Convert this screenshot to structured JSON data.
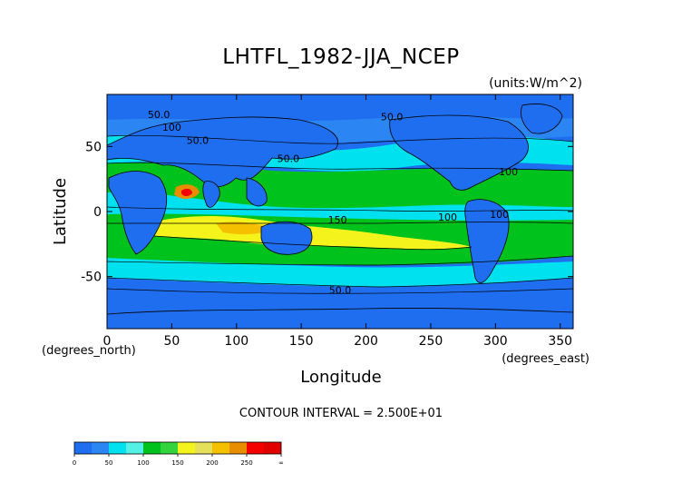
{
  "chart_data": {
    "type": "heatmap",
    "title": "LHTFL_1982-JJA_NCEP",
    "units": "(units:W/m^2)",
    "xlabel": "Longitude",
    "ylabel": "Latitude",
    "x_unit_label": "(degrees_east)",
    "y_unit_label": "(degrees_north)",
    "xlim": [
      0,
      360
    ],
    "ylim": [
      -90,
      90
    ],
    "x_ticks": [
      0,
      50,
      100,
      150,
      200,
      250,
      300,
      350
    ],
    "y_ticks": [
      -50,
      0,
      50
    ],
    "contour_interval_text": "CONTOUR INTERVAL = 2.500E+01",
    "contour_labels": [
      {
        "text": "50.0",
        "lon": 40,
        "lat": 72
      },
      {
        "text": "100",
        "lon": 50,
        "lat": 62
      },
      {
        "text": "50.0",
        "lon": 70,
        "lat": 52
      },
      {
        "text": "50.0",
        "lon": 140,
        "lat": 38
      },
      {
        "text": "50.0",
        "lon": 220,
        "lat": 70
      },
      {
        "text": "100",
        "lon": 310,
        "lat": 28
      },
      {
        "text": "150",
        "lon": 178,
        "lat": -9
      },
      {
        "text": "100",
        "lon": 263,
        "lat": -7
      },
      {
        "text": "100",
        "lon": 303,
        "lat": -5
      },
      {
        "text": "50.0",
        "lon": 180,
        "lat": -63
      }
    ],
    "colorbar": {
      "levels": [
        "0",
        "50",
        "100",
        "150",
        "200",
        "250",
        "∞"
      ],
      "colors": [
        "#1f6ef0",
        "#2b86f3",
        "#00e1f0",
        "#54f0e6",
        "#00c21c",
        "#33d33d",
        "#f4f41c",
        "#e5e05a",
        "#f4c000",
        "#e88c00",
        "#f40000",
        "#e10000"
      ]
    }
  }
}
